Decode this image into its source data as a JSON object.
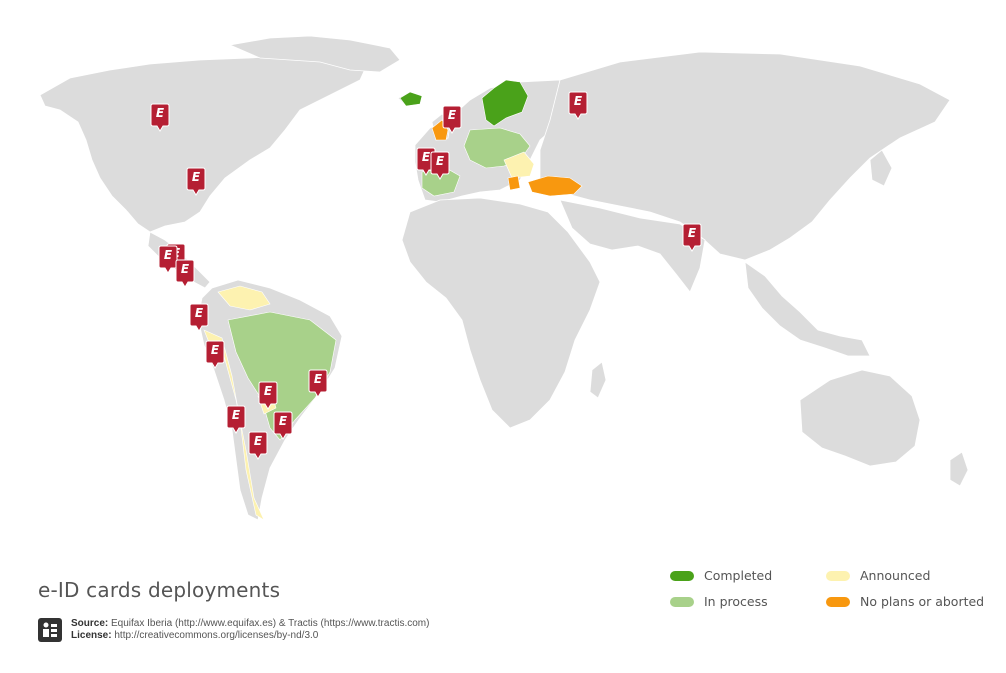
{
  "title": "e-ID cards deployments",
  "source": {
    "source_label": "Source:",
    "source_text": "Equifax Iberia (http://www.equifax.es) & Tractis (https://www.tractis.com)",
    "license_label": "License:",
    "license_text": "http://creativecommons.org/licenses/by-nd/3.0"
  },
  "legend": [
    {
      "label": "Completed",
      "color": "#4aa21a"
    },
    {
      "label": "Announced",
      "color": "#fdf2b0"
    },
    {
      "label": "In process",
      "color": "#a8d18a"
    },
    {
      "label": "No plans or aborted",
      "color": "#f8980f"
    }
  ],
  "pin": {
    "letter": "E",
    "color": "#b51f33"
  },
  "colors": {
    "land": "#dcdcdc",
    "border": "#ffffff"
  }
}
